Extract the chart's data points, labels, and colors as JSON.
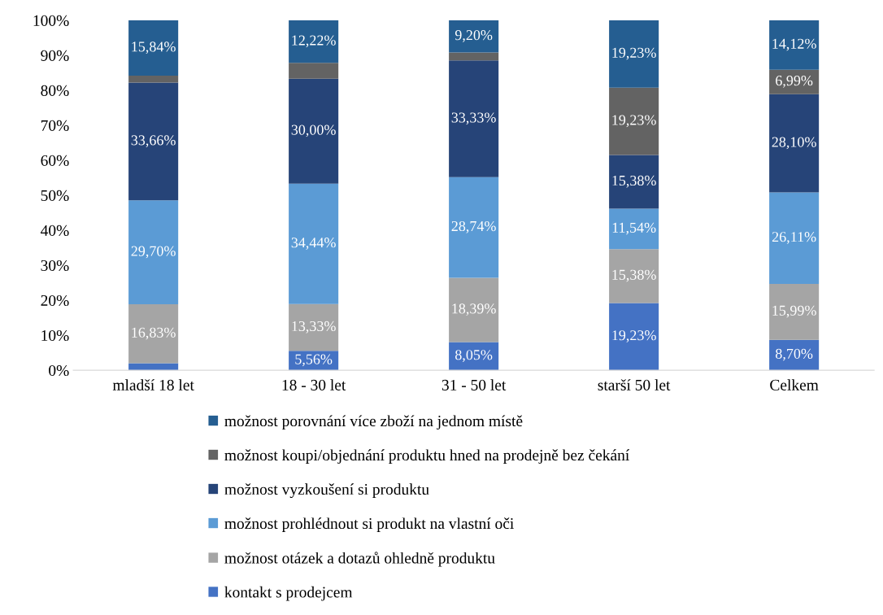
{
  "chart_data": {
    "type": "bar",
    "stacked": true,
    "categories": [
      "mladší 18 let",
      "18 - 30 let",
      "31 - 50 let",
      "starší 50 let",
      "Celkem"
    ],
    "ylim": [
      0,
      100
    ],
    "yticks": [
      {
        "value": 0,
        "label": "0%"
      },
      {
        "value": 10,
        "label": "10%"
      },
      {
        "value": 20,
        "label": "20%"
      },
      {
        "value": 30,
        "label": "30%"
      },
      {
        "value": 40,
        "label": "40%"
      },
      {
        "value": 50,
        "label": "50%"
      },
      {
        "value": 60,
        "label": "60%"
      },
      {
        "value": 70,
        "label": "70%"
      },
      {
        "value": 80,
        "label": "80%"
      },
      {
        "value": 90,
        "label": "90%"
      },
      {
        "value": 100,
        "label": "100%"
      }
    ],
    "grid": false,
    "legend": "bottom",
    "series": [
      {
        "name": "kontakt s prodejcem",
        "color": "#4472c4",
        "values": [
          2,
          5.56,
          8.05,
          19.23,
          8.7
        ],
        "value_labels": [
          null,
          "5,56%",
          "8,05%",
          "19,23%",
          "8,70%"
        ]
      },
      {
        "name": "možnost otázek a dotazů ohledně produktu",
        "color": "#a5a5a5",
        "values": [
          16.83,
          13.33,
          18.39,
          15.38,
          15.99
        ],
        "value_labels": [
          "16,83%",
          "13,33%",
          "18,39%",
          "15,38%",
          "15,99%"
        ]
      },
      {
        "name": "možnost prohlédnout si produkt na vlastní oči",
        "color": "#5b9bd5",
        "values": [
          29.7,
          34.44,
          28.74,
          11.54,
          26.11
        ],
        "value_labels": [
          "29,70%",
          "34,44%",
          "28,74%",
          "11,54%",
          "26,11%"
        ]
      },
      {
        "name": "možnost vyzkoušení si produktu",
        "color": "#264478",
        "values": [
          33.66,
          30.0,
          33.33,
          15.38,
          28.1
        ],
        "value_labels": [
          "33,66%",
          "30,00%",
          "33,33%",
          "15,38%",
          "28,10%"
        ]
      },
      {
        "name": "možnost koupi/objednání produktu hned na prodejně bez čekání",
        "color": "#636363",
        "values": [
          2,
          4.5,
          2.3,
          19.23,
          6.99
        ],
        "value_labels": [
          null,
          null,
          null,
          "19,23%",
          "6,99%"
        ]
      },
      {
        "name": "možnost porovnání více zboží na jednom místě",
        "color": "#255e91",
        "values": [
          15.84,
          12.22,
          9.2,
          19.23,
          14.12
        ],
        "value_labels": [
          "15,84%",
          "12,22%",
          "9,20%",
          "19,23%",
          "14,12%"
        ]
      }
    ]
  }
}
